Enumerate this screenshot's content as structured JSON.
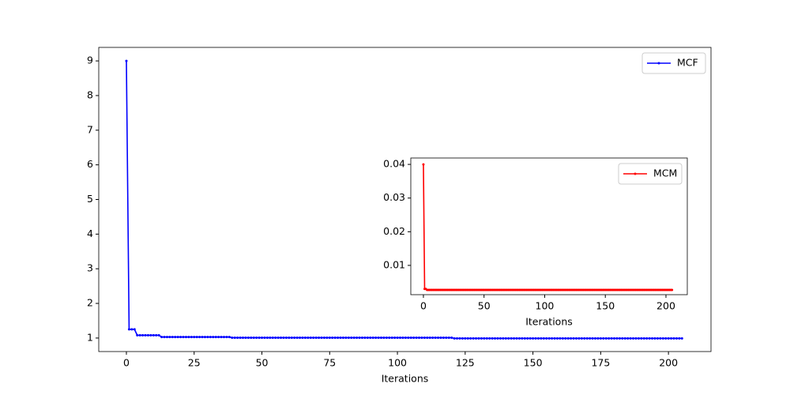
{
  "chart_data": [
    {
      "type": "line",
      "xlabel": "Iterations",
      "xlim": [
        -10.2,
        215.7
      ],
      "ylim": [
        0.61,
        9.39
      ],
      "xticks": [
        0,
        25,
        50,
        75,
        100,
        125,
        150,
        175,
        200
      ],
      "yticks": [
        1,
        2,
        3,
        4,
        5,
        6,
        7,
        8,
        9
      ],
      "legend": "upper right",
      "series": [
        {
          "name": "MCF",
          "color": "#0000ff",
          "values": [
            9,
            1.25,
            1.25,
            1.25,
            1.08,
            1.08,
            1.08,
            1.08,
            1.08,
            1.08,
            1.08,
            1.08,
            1.08,
            1.03,
            1.03,
            1.03,
            1.03,
            1.03,
            1.03,
            1.03,
            1.03,
            1.03,
            1.03,
            1.03,
            1.03,
            1.03,
            1.03,
            1.03,
            1.03,
            1.03,
            1.03,
            1.03,
            1.03,
            1.03,
            1.03,
            1.03,
            1.03,
            1.03,
            1.03,
            1.01,
            1.01,
            1.01,
            1.01,
            1.01,
            1.01,
            1.01,
            1.01,
            1.01,
            1.01,
            1.01,
            1.01,
            1.01,
            1.01,
            1.01,
            1.01,
            1.01,
            1.01,
            1.01,
            1.01,
            1.01,
            1.01,
            1.01,
            1.01,
            1.01,
            1.01,
            1.01,
            1.01,
            1.01,
            1.01,
            1.01,
            1.01,
            1.01,
            1.01,
            1.01,
            1.01,
            1.01,
            1.01,
            1.01,
            1.01,
            1.01,
            1.01,
            1.01,
            1.01,
            1.01,
            1.01,
            1.01,
            1.01,
            1.01,
            1.01,
            1.01,
            1.01,
            1.01,
            1.01,
            1.01,
            1.01,
            1.01,
            1.01,
            1.01,
            1.01,
            1.01,
            1.01,
            1.01,
            1.01,
            1.01,
            1.01,
            1.01,
            1.01,
            1.01,
            1.01,
            1.01,
            1.01,
            1.01,
            1.01,
            1.01,
            1.01,
            1.01,
            1.01,
            1.01,
            1.01,
            1.01,
            1.01,
            0.99,
            0.99,
            0.99,
            0.99,
            0.99,
            0.99,
            0.99,
            0.99,
            0.99,
            0.99,
            0.99,
            0.99,
            0.99,
            0.99,
            0.99,
            0.99,
            0.99,
            0.99,
            0.99,
            0.99,
            0.99,
            0.99,
            0.99,
            0.99,
            0.99,
            0.99,
            0.99,
            0.99,
            0.99,
            0.99,
            0.99,
            0.99,
            0.99,
            0.99,
            0.99,
            0.99,
            0.99,
            0.99,
            0.99,
            0.99,
            0.99,
            0.99,
            0.99,
            0.99,
            0.99,
            0.99,
            0.99,
            0.99,
            0.99,
            0.99,
            0.99,
            0.99,
            0.99,
            0.99,
            0.99,
            0.99,
            0.99,
            0.99,
            0.99,
            0.99,
            0.99,
            0.99,
            0.99,
            0.99,
            0.99,
            0.99,
            0.99,
            0.99,
            0.99,
            0.99,
            0.99,
            0.99,
            0.99,
            0.99,
            0.99,
            0.99,
            0.99,
            0.99,
            0.99,
            0.99,
            0.99,
            0.99,
            0.99,
            0.99,
            0.99
          ]
        }
      ]
    },
    {
      "type": "line",
      "xlabel": "Iterations",
      "xlim": [
        -10.4,
        217.6
      ],
      "ylim": [
        0.0013,
        0.0419
      ],
      "xticks": [
        0,
        50,
        100,
        150,
        200
      ],
      "yticks": [
        0.01,
        0.02,
        0.03,
        0.04
      ],
      "legend": "upper right",
      "series": [
        {
          "name": "MCM",
          "color": "#ff0000",
          "values": [
            0.04,
            0.003,
            0.003,
            0.0027,
            0.0027,
            0.0027,
            0.0027,
            0.0027,
            0.0027,
            0.0027,
            0.0027,
            0.0027,
            0.0027,
            0.0027,
            0.0027,
            0.0027,
            0.0027,
            0.0027,
            0.0027,
            0.0027,
            0.0027,
            0.0027,
            0.0027,
            0.0027,
            0.0027,
            0.0027,
            0.0027,
            0.0027,
            0.0027,
            0.0027,
            0.0027,
            0.0027,
            0.0027,
            0.0027,
            0.0027,
            0.0027,
            0.0027,
            0.0027,
            0.0027,
            0.0027,
            0.0027,
            0.0027,
            0.0027,
            0.0027,
            0.0027,
            0.0027,
            0.0027,
            0.0027,
            0.0027,
            0.0027,
            0.0027,
            0.0027,
            0.0027,
            0.0027,
            0.0027,
            0.0027,
            0.0027,
            0.0027,
            0.0027,
            0.0027,
            0.0027,
            0.0027,
            0.0027,
            0.0027,
            0.0027,
            0.0027,
            0.0027,
            0.0027,
            0.0027,
            0.0027,
            0.0027,
            0.0027,
            0.0027,
            0.0027,
            0.0027,
            0.0027,
            0.0027,
            0.0027,
            0.0027,
            0.0027,
            0.0027,
            0.0027,
            0.0027,
            0.0027,
            0.0027,
            0.0027,
            0.0027,
            0.0027,
            0.0027,
            0.0027,
            0.0027,
            0.0027,
            0.0027,
            0.0027,
            0.0027,
            0.0027,
            0.0027,
            0.0027,
            0.0027,
            0.0027,
            0.0027,
            0.0027,
            0.0027,
            0.0027,
            0.0027,
            0.0027,
            0.0027,
            0.0027,
            0.0027,
            0.0027,
            0.0027,
            0.0027,
            0.0027,
            0.0027,
            0.0027,
            0.0027,
            0.0027,
            0.0027,
            0.0027,
            0.0027,
            0.0027,
            0.0027,
            0.0027,
            0.0027,
            0.0027,
            0.0027,
            0.0027,
            0.0027,
            0.0027,
            0.0027,
            0.0027,
            0.0027,
            0.0027,
            0.0027,
            0.0027,
            0.0027,
            0.0027,
            0.0027,
            0.0027,
            0.0027,
            0.0027,
            0.0027,
            0.0027,
            0.0027,
            0.0027,
            0.0027,
            0.0027,
            0.0027,
            0.0027,
            0.0027,
            0.0027,
            0.0027,
            0.0027,
            0.0027,
            0.0027,
            0.0027,
            0.0027,
            0.0027,
            0.0027,
            0.0027,
            0.0027,
            0.0027,
            0.0027,
            0.0027,
            0.0027,
            0.0027,
            0.0027,
            0.0027,
            0.0027,
            0.0027,
            0.0027,
            0.0027,
            0.0027,
            0.0027,
            0.0027,
            0.0027,
            0.0027,
            0.0027,
            0.0027,
            0.0027,
            0.0027,
            0.0027,
            0.0027,
            0.0027,
            0.0027,
            0.0027,
            0.0027,
            0.0027,
            0.0027,
            0.0027,
            0.0027,
            0.0027,
            0.0027,
            0.0027,
            0.0027,
            0.0027,
            0.0027,
            0.0027,
            0.0027,
            0.0027,
            0.0027,
            0.0027,
            0.0027,
            0.0027,
            0.0027,
            0.0027
          ]
        }
      ]
    }
  ]
}
